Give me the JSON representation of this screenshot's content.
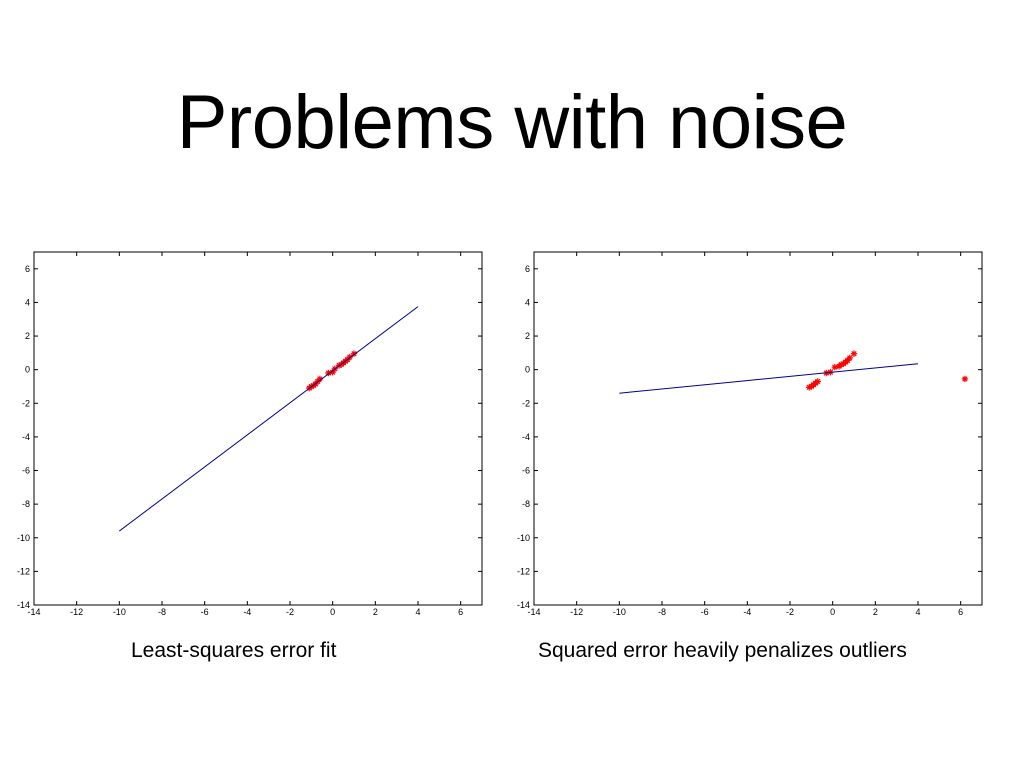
{
  "slide": {
    "title": "Problems with noise",
    "captions": [
      "Least-squares error fit",
      "Squared error heavily penalizes outliers"
    ]
  },
  "chart_data": [
    {
      "type": "scatter",
      "title": "",
      "xlabel": "",
      "ylabel": "",
      "xlim": [
        -14,
        7
      ],
      "ylim": [
        -14,
        7
      ],
      "xticks": [
        -14,
        -12,
        -10,
        -8,
        -6,
        -4,
        -2,
        0,
        2,
        4,
        6
      ],
      "yticks": [
        -14,
        -12,
        -10,
        -8,
        -6,
        -4,
        -2,
        0,
        2,
        4,
        6
      ],
      "grid": false,
      "series": [
        {
          "type": "scatter",
          "marker": "*",
          "color": "#ff0000",
          "x": [
            -1.1,
            -1.0,
            -0.9,
            -0.8,
            -0.7,
            -0.6,
            -0.2,
            0.0,
            0.1,
            0.3,
            0.4,
            0.5,
            0.6,
            0.7,
            0.8,
            1.0
          ],
          "y": [
            -1.1,
            -1.0,
            -0.95,
            -0.85,
            -0.7,
            -0.55,
            -0.2,
            -0.15,
            0.05,
            0.25,
            0.3,
            0.4,
            0.5,
            0.6,
            0.75,
            0.95
          ]
        },
        {
          "type": "line",
          "color": "#00008b",
          "x": [
            -10,
            4
          ],
          "y": [
            -9.6,
            3.75
          ]
        }
      ]
    },
    {
      "type": "scatter",
      "title": "",
      "xlabel": "",
      "ylabel": "",
      "xlim": [
        -14,
        7
      ],
      "ylim": [
        -14,
        7
      ],
      "xticks": [
        -14,
        -12,
        -10,
        -8,
        -6,
        -4,
        -2,
        0,
        2,
        4,
        6
      ],
      "yticks": [
        -14,
        -12,
        -10,
        -8,
        -6,
        -4,
        -2,
        0,
        2,
        4,
        6
      ],
      "grid": false,
      "series": [
        {
          "type": "scatter",
          "marker": "*",
          "color": "#ff0000",
          "x": [
            -1.1,
            -1.0,
            -0.9,
            -0.8,
            -0.7,
            -0.3,
            -0.1,
            0.1,
            0.3,
            0.4,
            0.5,
            0.6,
            0.7,
            0.8,
            1.0,
            6.2
          ],
          "y": [
            -1.05,
            -1.0,
            -0.9,
            -0.8,
            -0.7,
            -0.2,
            -0.15,
            0.15,
            0.2,
            0.3,
            0.35,
            0.45,
            0.55,
            0.7,
            0.95,
            -0.55
          ]
        },
        {
          "type": "line",
          "color": "#00008b",
          "x": [
            -10,
            4
          ],
          "y": [
            -1.4,
            0.35
          ]
        }
      ]
    }
  ]
}
